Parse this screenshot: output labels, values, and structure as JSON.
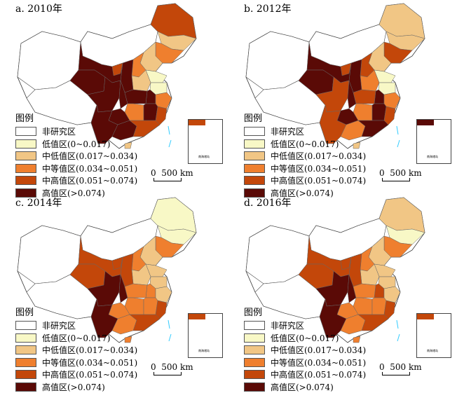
{
  "legend": {
    "title": "图例",
    "items": [
      {
        "label": "非研究区",
        "color": "#ffffff"
      },
      {
        "label": "低值区(0~0.017)",
        "color": "#f8f8c6"
      },
      {
        "label": "中低值区(0.017~0.034)",
        "color": "#f1c685"
      },
      {
        "label": "中等值区(0.034~0.051)",
        "color": "#ef7f2e"
      },
      {
        "label": "中高值区(0.051~0.074)",
        "color": "#c3470a"
      },
      {
        "label": "高值区(>0.074)",
        "color": "#5a0a06"
      }
    ]
  },
  "scale": {
    "zero": "0",
    "label": "500 km"
  },
  "inset_label": "南海诸岛",
  "regions": [
    "Heilongjiang",
    "Jilin",
    "Liaoning",
    "Beijing-Hebei",
    "Shandong",
    "Shanxi",
    "Henan",
    "Jiangsu",
    "Anhui",
    "Zhejiang",
    "Shaanxi",
    "Gansu",
    "Qinghai",
    "Ningxia",
    "Sichuan",
    "Chongqing",
    "Hubei",
    "Hunan",
    "Jiangxi",
    "Fujian",
    "Guizhou",
    "Yunnan",
    "Guangxi",
    "Guangdong",
    "Hainan"
  ],
  "panels": [
    {
      "title": "a. 2010年",
      "classes": [
        4,
        2,
        3,
        2,
        1,
        3,
        2,
        1,
        5,
        3,
        5,
        5,
        5,
        4,
        5,
        5,
        5,
        3,
        5,
        4,
        5,
        5,
        5,
        4,
        2
      ]
    },
    {
      "title": "b. 2012年",
      "classes": [
        2,
        2,
        4,
        2,
        1,
        4,
        3,
        1,
        5,
        3,
        5,
        5,
        5,
        4,
        4,
        5,
        4,
        3,
        5,
        4,
        5,
        4,
        3,
        5,
        2
      ]
    },
    {
      "title": "c. 2014年",
      "classes": [
        1,
        1,
        3,
        2,
        2,
        3,
        2,
        2,
        3,
        2,
        4,
        4,
        4,
        4,
        5,
        5,
        3,
        3,
        3,
        4,
        3,
        5,
        3,
        4,
        3
      ]
    },
    {
      "title": "d. 2016年",
      "classes": [
        2,
        1,
        3,
        2,
        2,
        3,
        2,
        2,
        4,
        2,
        4,
        4,
        4,
        4,
        5,
        5,
        3,
        3,
        3,
        4,
        3,
        5,
        3,
        4,
        3
      ]
    }
  ]
}
